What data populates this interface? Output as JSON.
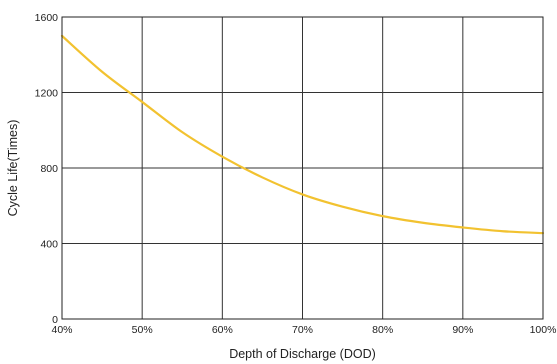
{
  "chart_data": {
    "type": "line",
    "title": "",
    "xlabel": "Depth of Discharge (DOD)",
    "ylabel": "Cycle Life(Times)",
    "x": [
      40,
      45,
      50,
      55,
      60,
      65,
      70,
      75,
      80,
      85,
      90,
      95,
      100
    ],
    "x_tick_values": [
      40,
      50,
      60,
      70,
      80,
      90,
      100
    ],
    "x_tick_labels": [
      "40%",
      "50%",
      "60%",
      "70%",
      "80%",
      "90%",
      "100%"
    ],
    "y_tick_values": [
      0,
      400,
      800,
      1200,
      1600
    ],
    "y_tick_labels": [
      "0",
      "400",
      "800",
      "1200",
      "1600"
    ],
    "xlim": [
      40,
      100
    ],
    "ylim": [
      0,
      1600
    ],
    "grid": true,
    "series": [
      {
        "color": "#F2C230",
        "values": [
          1500,
          1310,
          1150,
          990,
          860,
          750,
          660,
          595,
          545,
          510,
          485,
          465,
          455
        ]
      }
    ]
  }
}
